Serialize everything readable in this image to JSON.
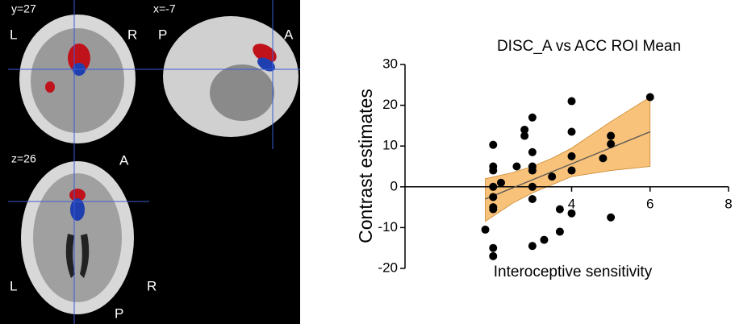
{
  "brain_views": [
    {
      "slice": "y=27",
      "labels": [
        "L",
        "R"
      ]
    },
    {
      "slice": "x=-7",
      "labels": [
        "P",
        "A"
      ]
    },
    {
      "slice": "z=26",
      "labels": [
        "A",
        "L",
        "R",
        "P"
      ]
    }
  ],
  "chart_data": {
    "type": "scatter",
    "title": "DISC_A vs ACC ROI Mean",
    "x_label": "Interoceptive sensitivity",
    "y_label": "Contrast estimates",
    "x": [
      2,
      2,
      2,
      2,
      2,
      2,
      2,
      2,
      2,
      2.2,
      1.8,
      2.6,
      2.8,
      2.8,
      3,
      3,
      3,
      3,
      3,
      3,
      3,
      3.3,
      3.5,
      3.7,
      3.7,
      4,
      4,
      4,
      4,
      4,
      4.8,
      5,
      5,
      5,
      6
    ],
    "values": [
      10.3,
      5,
      4,
      0,
      -2.5,
      -5,
      -5.5,
      -15,
      -17,
      1,
      -10.5,
      5,
      12.5,
      14,
      17,
      8.5,
      5,
      4,
      0,
      -3,
      -14.5,
      -13,
      2.5,
      -5.5,
      -11,
      21,
      13.5,
      7.5,
      4,
      -6.5,
      7,
      12.5,
      10.5,
      -7.5,
      22
    ],
    "color": "#000000",
    "fit": {
      "x": [
        1.8,
        6
      ],
      "y": [
        -3,
        13.5
      ],
      "color": "#555555"
    },
    "ci": {
      "x": [
        1.8,
        2.5,
        3,
        3.5,
        4,
        5,
        6
      ],
      "upper": [
        2,
        3.5,
        5,
        7,
        9.5,
        16,
        22
      ],
      "lower": [
        -8.5,
        -4,
        -1.5,
        0.5,
        2.5,
        4,
        5
      ],
      "color": "#f9c27a"
    },
    "xlim": [
      0,
      8
    ],
    "xticks": [
      4,
      6,
      8
    ],
    "ylim": [
      -20,
      30
    ],
    "yticks": [
      -20,
      -10,
      0,
      10,
      20,
      30
    ]
  }
}
